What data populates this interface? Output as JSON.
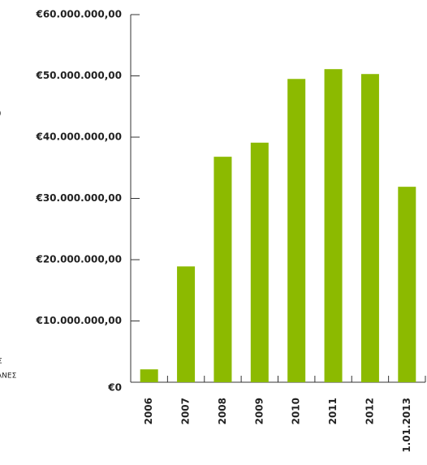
{
  "chart_data": {
    "type": "bar",
    "categories": [
      "2006",
      "2007",
      "2008",
      "2009",
      "2010",
      "2011",
      "2012",
      "1.01.2013"
    ],
    "values": [
      2100000,
      18900000,
      36800000,
      39100000,
      49500000,
      51100000,
      50300000,
      31900000
    ],
    "color": "#8cba00",
    "ylim": [
      0,
      60000000
    ],
    "yticks": [
      {
        "value": 0,
        "label": "€0"
      },
      {
        "value": 10000000,
        "label": "€10.000.000,00"
      },
      {
        "value": 20000000,
        "label": "€20.000.000,00"
      },
      {
        "value": 30000000,
        "label": "€30.000.000,00"
      },
      {
        "value": 40000000,
        "label": "€40.000.000,00"
      },
      {
        "value": 50000000,
        "label": "€50.000.000,00"
      },
      {
        "value": 60000000,
        "label": "€60.000.000,00"
      }
    ],
    "annotations": [
      ")",
      "Σ",
      "ΑΝΕΣ"
    ]
  }
}
